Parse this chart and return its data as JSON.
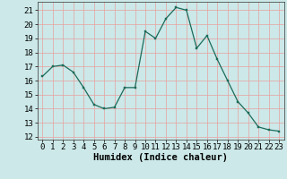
{
  "x": [
    0,
    1,
    2,
    3,
    4,
    5,
    6,
    7,
    8,
    9,
    10,
    11,
    12,
    13,
    14,
    15,
    16,
    17,
    18,
    19,
    20,
    21,
    22,
    23
  ],
  "y": [
    16.3,
    17.0,
    17.1,
    16.6,
    15.5,
    14.3,
    14.0,
    14.1,
    15.5,
    15.5,
    19.5,
    19.0,
    20.4,
    21.2,
    21.0,
    18.3,
    19.2,
    17.5,
    16.0,
    14.5,
    13.7,
    12.7,
    12.5,
    12.4
  ],
  "line_color": "#1a6b5a",
  "marker": "s",
  "marker_size": 2.0,
  "bg_color": "#cce8e8",
  "grid_color": "#e8a0a0",
  "xlabel": "Humidex (Indice chaleur)",
  "xlim": [
    -0.5,
    23.5
  ],
  "ylim": [
    11.8,
    21.6
  ],
  "yticks": [
    12,
    13,
    14,
    15,
    16,
    17,
    18,
    19,
    20,
    21
  ],
  "xticks": [
    0,
    1,
    2,
    3,
    4,
    5,
    6,
    7,
    8,
    9,
    10,
    11,
    12,
    13,
    14,
    15,
    16,
    17,
    18,
    19,
    20,
    21,
    22,
    23
  ],
  "tick_fontsize": 6.5,
  "xlabel_fontsize": 7.5
}
